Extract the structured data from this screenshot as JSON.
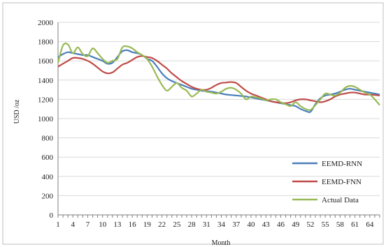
{
  "chart_data": {
    "type": "line",
    "xlabel": "Month",
    "ylabel": "USD /oz",
    "ylim": [
      0,
      2000
    ],
    "ytick_step": 200,
    "x_tick_labels": [
      1,
      4,
      7,
      10,
      13,
      16,
      19,
      22,
      25,
      28,
      31,
      34,
      37,
      40,
      43,
      46,
      49,
      52,
      55,
      58,
      61,
      64
    ],
    "x_range": [
      1,
      66
    ],
    "grid": "horizontal",
    "legend_position": "bottom-right",
    "series": [
      {
        "name": "EEMD-RNN",
        "color": "#4a7ebb",
        "values": [
          1640,
          1670,
          1690,
          1680,
          1670,
          1660,
          1660,
          1640,
          1620,
          1600,
          1570,
          1580,
          1640,
          1700,
          1710,
          1690,
          1680,
          1660,
          1620,
          1600,
          1540,
          1470,
          1420,
          1390,
          1370,
          1350,
          1330,
          1310,
          1300,
          1290,
          1285,
          1280,
          1270,
          1260,
          1250,
          1245,
          1240,
          1235,
          1230,
          1220,
          1210,
          1200,
          1190,
          1180,
          1170,
          1160,
          1150,
          1140,
          1130,
          1100,
          1080,
          1070,
          1150,
          1210,
          1240,
          1250,
          1260,
          1280,
          1300,
          1310,
          1300,
          1290,
          1280,
          1270,
          1260,
          1250
        ]
      },
      {
        "name": "EEMD-FNN",
        "color": "#be4b48",
        "values": [
          1540,
          1570,
          1600,
          1630,
          1630,
          1620,
          1600,
          1570,
          1530,
          1490,
          1470,
          1480,
          1520,
          1560,
          1580,
          1610,
          1640,
          1650,
          1640,
          1630,
          1600,
          1560,
          1520,
          1470,
          1430,
          1390,
          1360,
          1330,
          1310,
          1300,
          1300,
          1320,
          1350,
          1370,
          1375,
          1380,
          1370,
          1330,
          1290,
          1260,
          1240,
          1220,
          1200,
          1180,
          1170,
          1165,
          1160,
          1170,
          1190,
          1200,
          1200,
          1190,
          1180,
          1170,
          1180,
          1200,
          1230,
          1250,
          1260,
          1270,
          1270,
          1260,
          1250,
          1250,
          1245,
          1240
        ]
      },
      {
        "name": "Actual Data",
        "color": "#98b954",
        "values": [
          1580,
          1760,
          1770,
          1680,
          1740,
          1670,
          1650,
          1730,
          1680,
          1620,
          1580,
          1600,
          1620,
          1740,
          1750,
          1730,
          1690,
          1660,
          1620,
          1540,
          1440,
          1350,
          1290,
          1330,
          1370,
          1320,
          1290,
          1230,
          1260,
          1300,
          1280,
          1270,
          1260,
          1280,
          1310,
          1320,
          1300,
          1260,
          1200,
          1230,
          1220,
          1210,
          1190,
          1200,
          1200,
          1170,
          1150,
          1130,
          1170,
          1130,
          1100,
          1090,
          1140,
          1200,
          1260,
          1250,
          1240,
          1270,
          1320,
          1340,
          1330,
          1300,
          1270,
          1250,
          1200,
          1140
        ]
      }
    ]
  }
}
